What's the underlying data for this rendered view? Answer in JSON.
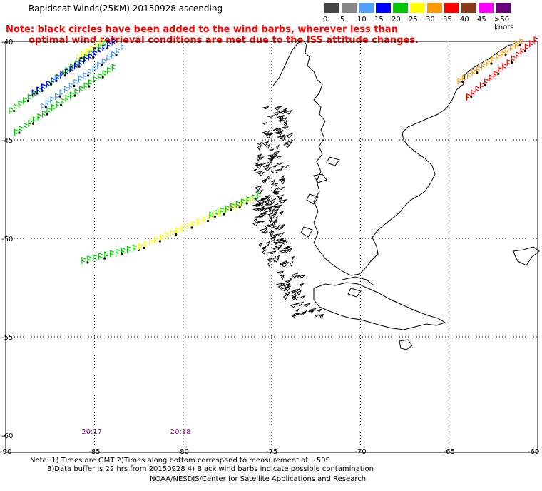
{
  "header": {
    "title": "Rapidscat Winds(25KM) 20150928 ascending",
    "note_line1": "Note: black circles have been added to the wind barbs, wherever less than",
    "note_line2": "optimal wind retrieval conditions are met due to the ISS attitude changes."
  },
  "legend": {
    "labels": [
      "0",
      "5",
      "10",
      "15",
      "20",
      "25",
      "30",
      "35",
      "40",
      "45",
      ">50 knots"
    ],
    "colors": [
      "#444444",
      "#888888",
      "#4fa0ff",
      "#0000ff",
      "#00c800",
      "#ffff00",
      "#ff9900",
      "#ff0000",
      "#8b3a1a",
      "#ff00ff",
      "#6a0080"
    ]
  },
  "axes": {
    "lat_labels": [
      "-40",
      "-45",
      "-50",
      "-55",
      "-60"
    ],
    "lon_labels": [
      "-90",
      "-85",
      "-80",
      "-75",
      "-70",
      "-65",
      "-60"
    ]
  },
  "pass_times": [
    "20:17",
    "20:18"
  ],
  "footer": {
    "line1": "Note: 1) Times are GMT 2)Times along bottom correspond to measurement at ~50S",
    "line2": "3)Data buffer is 22 hrs from 20150928 4) Black wind barbs indicate possible contamination",
    "line3": "NOAA/NESDIS/Center for Satellite Applications and Research"
  },
  "swaths": [
    {
      "name": "nw-swath-a",
      "from": [
        -89.8,
        -43.7
      ],
      "to": [
        -84.5,
        -40.3
      ],
      "color": "#00c800"
    },
    {
      "name": "nw-swath-b",
      "from": [
        -88.5,
        -42.8
      ],
      "to": [
        -84.0,
        -40.2
      ],
      "color": "#0000ff"
    },
    {
      "name": "nw-swath-c",
      "from": [
        -88.0,
        -43.5
      ],
      "to": [
        -83.5,
        -40.5
      ],
      "color": "#4fa0ff"
    },
    {
      "name": "nw-swath-d",
      "from": [
        -89.5,
        -44.8
      ],
      "to": [
        -84.0,
        -41.5
      ],
      "color": "#00c800"
    },
    {
      "name": "nw-swath-e",
      "from": [
        -86.0,
        -41.0
      ],
      "to": [
        -84.7,
        -40.2
      ],
      "color": "#ffff00"
    },
    {
      "name": "mid-swath-a",
      "from": [
        -85.7,
        -51.3
      ],
      "to": [
        -82.5,
        -50.6
      ],
      "color": "#00c800"
    },
    {
      "name": "mid-swath-b",
      "from": [
        -82.5,
        -50.6
      ],
      "to": [
        -76.2,
        -48.2
      ],
      "color": "#ffff00"
    },
    {
      "name": "mid-swath-c",
      "from": [
        -78.5,
        -49.0
      ],
      "to": [
        -75.8,
        -48.0
      ],
      "color": "#00c800"
    },
    {
      "name": "ne-swath-a",
      "from": [
        -64.0,
        -43.0
      ],
      "to": [
        -60.2,
        -40.1
      ],
      "color": "#ff0000"
    },
    {
      "name": "ne-swath-b",
      "from": [
        -64.5,
        -42.2
      ],
      "to": [
        -61.0,
        -40.2
      ],
      "color": "#ff9900"
    }
  ]
}
